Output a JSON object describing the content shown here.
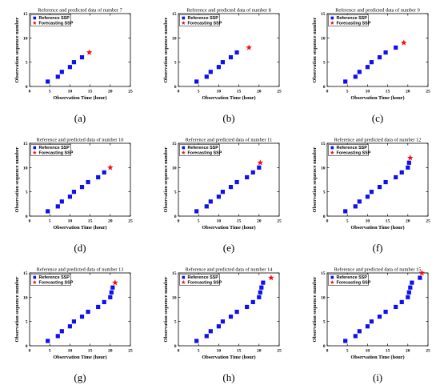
{
  "colors": {
    "reference": "#1010ee",
    "forecast": "#ee1010"
  },
  "legend": {
    "reference_label": "Reference SSP",
    "forecast_label": "Forecasting SSP"
  },
  "axes": {
    "xlabel": "Observation Time (hour)",
    "ylabel": "Observation sequence number"
  },
  "chart_data": [
    {
      "type": "scatter",
      "caption": "(a)",
      "title": "Reference and predicted data of number 7",
      "xlim": [
        0,
        25
      ],
      "ylim": [
        0,
        15
      ],
      "xticks": [
        0,
        5,
        10,
        15,
        20,
        25
      ],
      "yticks": [
        0,
        5,
        10,
        15
      ],
      "legend_position": "top-left",
      "reference": {
        "x": [
          4.5,
          7,
          8,
          10,
          11,
          13
        ],
        "y": [
          1,
          2,
          3,
          4,
          5,
          6
        ]
      },
      "forecast": {
        "x": [
          14.8
        ],
        "y": [
          7
        ]
      }
    },
    {
      "type": "scatter",
      "caption": "(b)",
      "title": "Reference and predicted data of number 8",
      "xlim": [
        0,
        25
      ],
      "ylim": [
        0,
        15
      ],
      "xticks": [
        0,
        5,
        10,
        15,
        20,
        25
      ],
      "yticks": [
        0,
        5,
        10,
        15
      ],
      "legend_position": "top-left",
      "reference": {
        "x": [
          4.5,
          7,
          8,
          10,
          11,
          13,
          14.5
        ],
        "y": [
          1,
          2,
          3,
          4,
          5,
          6,
          7
        ]
      },
      "forecast": {
        "x": [
          17.5
        ],
        "y": [
          8
        ]
      }
    },
    {
      "type": "scatter",
      "caption": "(c)",
      "title": "Reference and predicted data of number 9",
      "xlim": [
        0,
        25
      ],
      "ylim": [
        0,
        15
      ],
      "xticks": [
        0,
        5,
        10,
        15,
        20,
        25
      ],
      "yticks": [
        0,
        5,
        10,
        15
      ],
      "legend_position": "top-left",
      "reference": {
        "x": [
          4.5,
          7,
          8,
          10,
          11,
          13,
          14.5,
          17
        ],
        "y": [
          1,
          2,
          3,
          4,
          5,
          6,
          7,
          8
        ]
      },
      "forecast": {
        "x": [
          19
        ],
        "y": [
          9
        ]
      }
    },
    {
      "type": "scatter",
      "caption": "(d)",
      "title": "Reference and predicted data of number 10",
      "xlim": [
        0,
        25
      ],
      "ylim": [
        0,
        15
      ],
      "xticks": [
        0,
        5,
        10,
        15,
        20,
        25
      ],
      "yticks": [
        0,
        5,
        10,
        15
      ],
      "legend_position": "top-left",
      "reference": {
        "x": [
          4.5,
          7,
          8,
          10,
          11,
          13,
          14.5,
          17,
          18.5
        ],
        "y": [
          1,
          2,
          3,
          4,
          5,
          6,
          7,
          8,
          9
        ]
      },
      "forecast": {
        "x": [
          20
        ],
        "y": [
          10
        ]
      }
    },
    {
      "type": "scatter",
      "caption": "(e)",
      "title": "Reference and predicted data of number 11",
      "xlim": [
        0,
        25
      ],
      "ylim": [
        0,
        15
      ],
      "xticks": [
        0,
        5,
        10,
        15,
        20,
        25
      ],
      "yticks": [
        0,
        5,
        10,
        15
      ],
      "legend_position": "top-left",
      "reference": {
        "x": [
          4.5,
          7,
          8,
          10,
          11,
          13,
          14.5,
          17,
          18.5,
          20
        ],
        "y": [
          1,
          2,
          3,
          4,
          5,
          6,
          7,
          8,
          9,
          10
        ]
      },
      "forecast": {
        "x": [
          20.3
        ],
        "y": [
          11
        ]
      }
    },
    {
      "type": "scatter",
      "caption": "(f)",
      "title": "Reference and predicted data of number 12",
      "xlim": [
        0,
        25
      ],
      "ylim": [
        0,
        15
      ],
      "xticks": [
        0,
        5,
        10,
        15,
        20,
        25
      ],
      "yticks": [
        0,
        5,
        10,
        15
      ],
      "legend_position": "top-left",
      "reference": {
        "x": [
          4.5,
          7,
          8,
          10,
          11,
          13,
          14.5,
          17,
          18.5,
          20,
          20.3
        ],
        "y": [
          1,
          2,
          3,
          4,
          5,
          6,
          7,
          8,
          9,
          10,
          11
        ]
      },
      "forecast": {
        "x": [
          20.6
        ],
        "y": [
          12
        ]
      }
    },
    {
      "type": "scatter",
      "caption": "(g)",
      "title": "Reference and predicted data of number 13",
      "xlim": [
        0,
        25
      ],
      "ylim": [
        0,
        15
      ],
      "xticks": [
        0,
        5,
        10,
        15,
        20,
        25
      ],
      "yticks": [
        0,
        5,
        10,
        15
      ],
      "legend_position": "top-left",
      "reference": {
        "x": [
          4.5,
          7,
          8,
          10,
          11,
          13,
          14.5,
          17,
          18.5,
          20,
          20.3,
          20.6
        ],
        "y": [
          1,
          2,
          3,
          4,
          5,
          6,
          7,
          8,
          9,
          10,
          11,
          12
        ]
      },
      "forecast": {
        "x": [
          21.2
        ],
        "y": [
          13
        ]
      }
    },
    {
      "type": "scatter",
      "caption": "(h)",
      "title": "Reference and predicted data of number 14",
      "xlim": [
        0,
        25
      ],
      "ylim": [
        0,
        15
      ],
      "xticks": [
        0,
        5,
        10,
        15,
        20,
        25
      ],
      "yticks": [
        0,
        5,
        10,
        15
      ],
      "legend_position": "top-left",
      "reference": {
        "x": [
          4.5,
          7,
          8,
          10,
          11,
          13,
          14.5,
          17,
          18.5,
          20,
          20.3,
          20.6,
          21
        ],
        "y": [
          1,
          2,
          3,
          4,
          5,
          6,
          7,
          8,
          9,
          10,
          11,
          12,
          13
        ]
      },
      "forecast": {
        "x": [
          23
        ],
        "y": [
          14
        ]
      }
    },
    {
      "type": "scatter",
      "caption": "(i)",
      "title": "Reference and predicted data of number 15",
      "xlim": [
        0,
        25
      ],
      "ylim": [
        0,
        15
      ],
      "xticks": [
        0,
        5,
        10,
        15,
        20,
        25
      ],
      "yticks": [
        0,
        5,
        10,
        15
      ],
      "legend_position": "top-left",
      "reference": {
        "x": [
          4.5,
          7,
          8,
          10,
          11,
          13,
          14.5,
          17,
          18.5,
          20,
          20.3,
          20.6,
          21,
          23
        ],
        "y": [
          1,
          2,
          3,
          4,
          5,
          6,
          7,
          8,
          9,
          10,
          11,
          12,
          13,
          14
        ]
      },
      "forecast": {
        "x": [
          23.5
        ],
        "y": [
          15
        ]
      }
    }
  ]
}
